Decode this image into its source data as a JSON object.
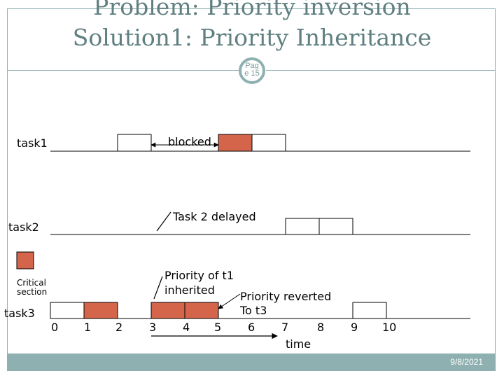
{
  "slide": {
    "title_line1": "Problem: Priority inversion",
    "title_line2": "Solution1: Priority Inheritance",
    "page_badge_line1": "Pag",
    "page_badge_line2": "e 15",
    "footer_date": "9/8/2021"
  },
  "tasks": {
    "task1": "task1",
    "task2": "task2",
    "task3": "task3"
  },
  "legend": {
    "critical_section_line1": "Critical",
    "critical_section_line2": "section",
    "swatch_color": "#d4654a"
  },
  "annotations": {
    "blocked": "blocked",
    "task2_delayed": "Task 2 delayed",
    "priority_inherited_line1": "Priority of t1",
    "priority_inherited_line2": "inherited",
    "priority_reverted_line1": "Priority reverted",
    "priority_reverted_line2": "To t3"
  },
  "timeline": {
    "ticks": [
      "0",
      "1",
      "2",
      "3",
      "4",
      "5",
      "6",
      "7",
      "8",
      "9",
      "10"
    ],
    "axis_label": "time"
  },
  "colors": {
    "critical": "#d4654a",
    "accent": "#8fb0b0",
    "title": "#5f7f80"
  }
}
